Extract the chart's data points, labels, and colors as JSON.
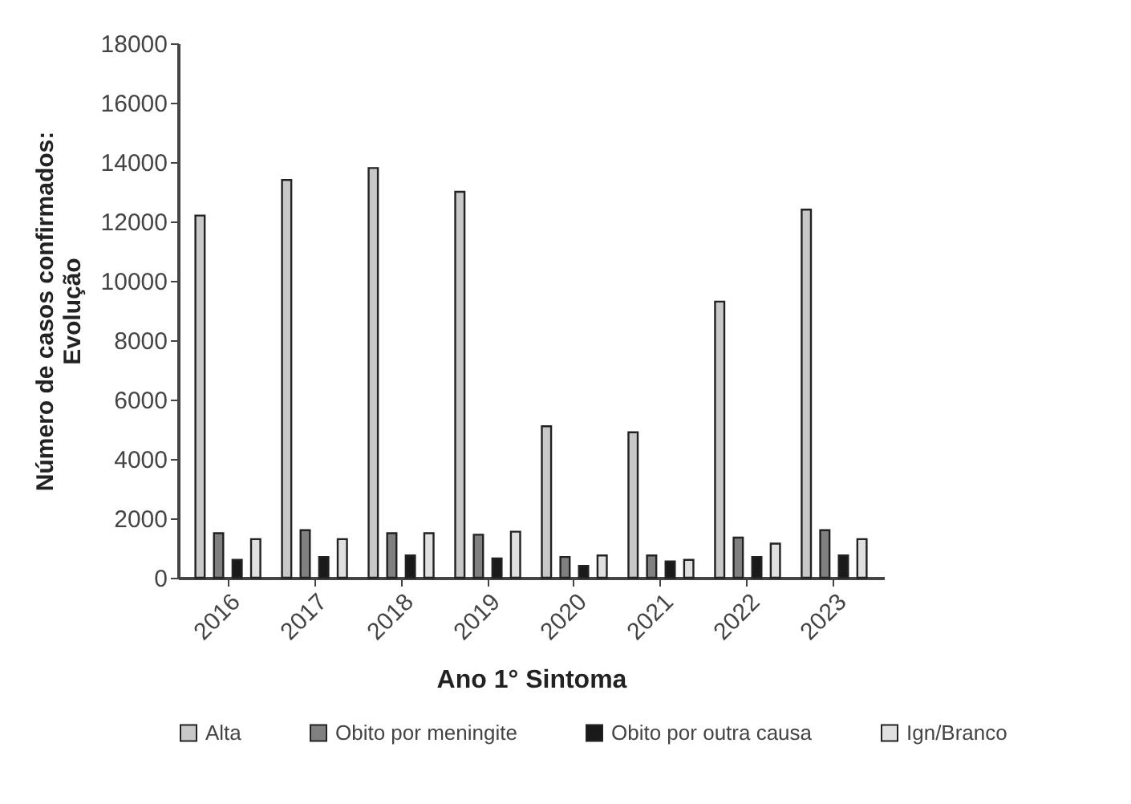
{
  "chart_data": {
    "type": "bar",
    "xlabel": "Ano 1° Sintoma",
    "ylabel": "Número de casos confirmados: Evolução",
    "categories": [
      "2016",
      "2017",
      "2018",
      "2019",
      "2020",
      "2021",
      "2022",
      "2023"
    ],
    "series": [
      {
        "name": "Alta",
        "color": "#c8c8c8",
        "values": [
          12200,
          13400,
          13800,
          13000,
          5100,
          4900,
          9300,
          12400
        ]
      },
      {
        "name": "Obito por meningite",
        "color": "#808080",
        "values": [
          1500,
          1600,
          1500,
          1450,
          700,
          750,
          1350,
          1600
        ]
      },
      {
        "name": "Obito por outra causa",
        "color": "#1a1a1a",
        "values": [
          600,
          700,
          750,
          650,
          400,
          550,
          700,
          750
        ]
      },
      {
        "name": "Ign/Branco",
        "color": "#e0e0e0",
        "values": [
          1300,
          1300,
          1500,
          1550,
          750,
          600,
          1150,
          1300
        ]
      }
    ],
    "ylim": [
      0,
      18000
    ],
    "yticks": [
      0,
      2000,
      4000,
      6000,
      8000,
      10000,
      12000,
      14000,
      16000,
      18000
    ],
    "grid": false,
    "legend": "bottom"
  }
}
